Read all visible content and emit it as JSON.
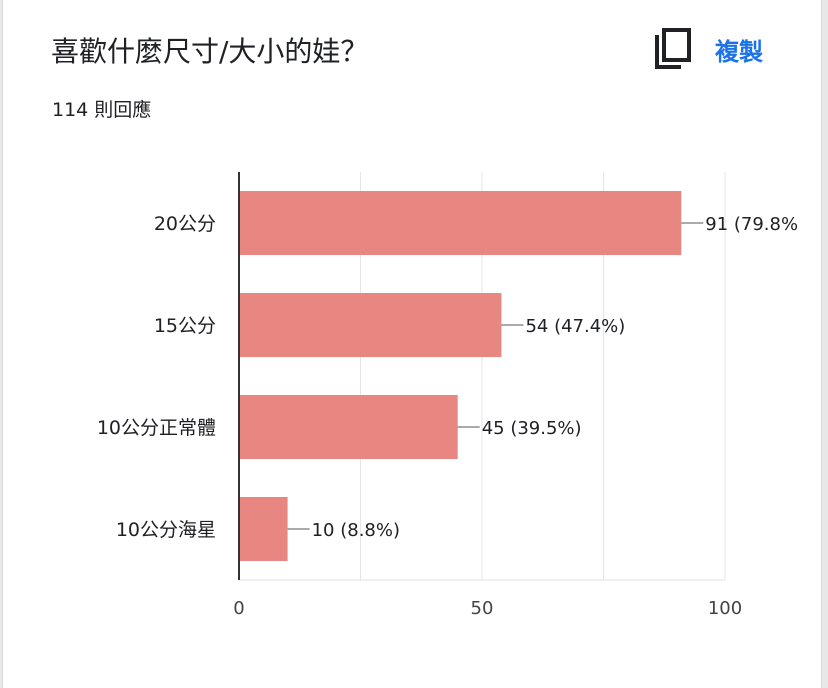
{
  "question": {
    "title": "喜歡什麼尺寸/大小的娃？",
    "response_count": "114 則回應"
  },
  "toolbar": {
    "copy_label": "複製",
    "copy_icon": "copy-icon"
  },
  "colors": {
    "bar": "#e88782",
    "accent": "#1a73e8"
  },
  "chart_data": {
    "type": "bar",
    "orientation": "horizontal",
    "categories": [
      "20公分",
      "15公分",
      "10公分正常體",
      "10公分海星"
    ],
    "values": [
      91,
      54,
      45,
      10
    ],
    "value_labels": [
      "91 (79.8%",
      "54 (47.4%)",
      "45 (39.5%)",
      "10 (8.8%)"
    ],
    "xlim": [
      0,
      100
    ],
    "xticks": [
      0,
      50,
      100
    ],
    "grid": true
  }
}
